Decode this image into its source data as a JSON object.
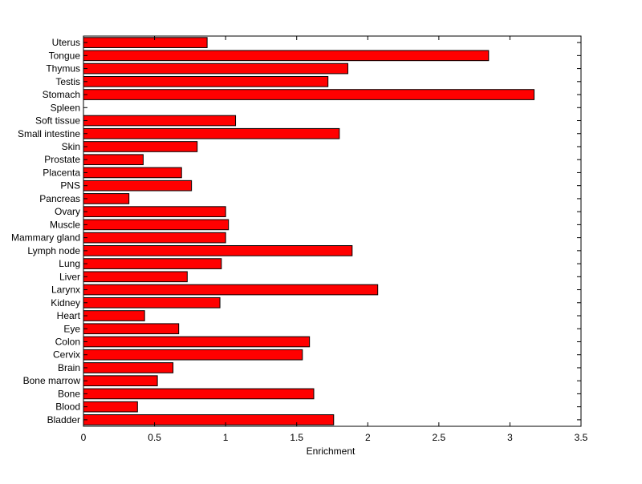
{
  "chart_data": {
    "type": "bar",
    "orientation": "horizontal",
    "title": "",
    "xlabel": "Enrichment",
    "ylabel": "",
    "xlim": [
      0,
      3.5
    ],
    "xticks": [
      0,
      0.5,
      1,
      1.5,
      2,
      2.5,
      3,
      3.5
    ],
    "xtick_labels": [
      "0",
      "0.5",
      "1",
      "1.5",
      "2",
      "2.5",
      "3",
      "3.5"
    ],
    "grid": false,
    "legend": "none",
    "bar_color": "#ff0000",
    "edge_color": "#000000",
    "categories": [
      "Uterus",
      "Tongue",
      "Thymus",
      "Testis",
      "Stomach",
      "Spleen",
      "Soft tissue",
      "Small intestine",
      "Skin",
      "Prostate",
      "Placenta",
      "PNS",
      "Pancreas",
      "Ovary",
      "Muscle",
      "Mammary gland",
      "Lymph node",
      "Lung",
      "Liver",
      "Larynx",
      "Kidney",
      "Heart",
      "Eye",
      "Colon",
      "Cervix",
      "Brain",
      "Bone marrow",
      "Bone",
      "Blood",
      "Bladder"
    ],
    "values": [
      0.87,
      2.85,
      1.86,
      1.72,
      3.17,
      0.0,
      1.07,
      1.8,
      0.8,
      0.42,
      0.69,
      0.76,
      0.32,
      1.0,
      1.02,
      1.0,
      1.89,
      0.97,
      0.73,
      2.07,
      0.96,
      0.43,
      0.67,
      1.59,
      1.54,
      0.63,
      0.52,
      1.62,
      0.38,
      1.76
    ]
  }
}
